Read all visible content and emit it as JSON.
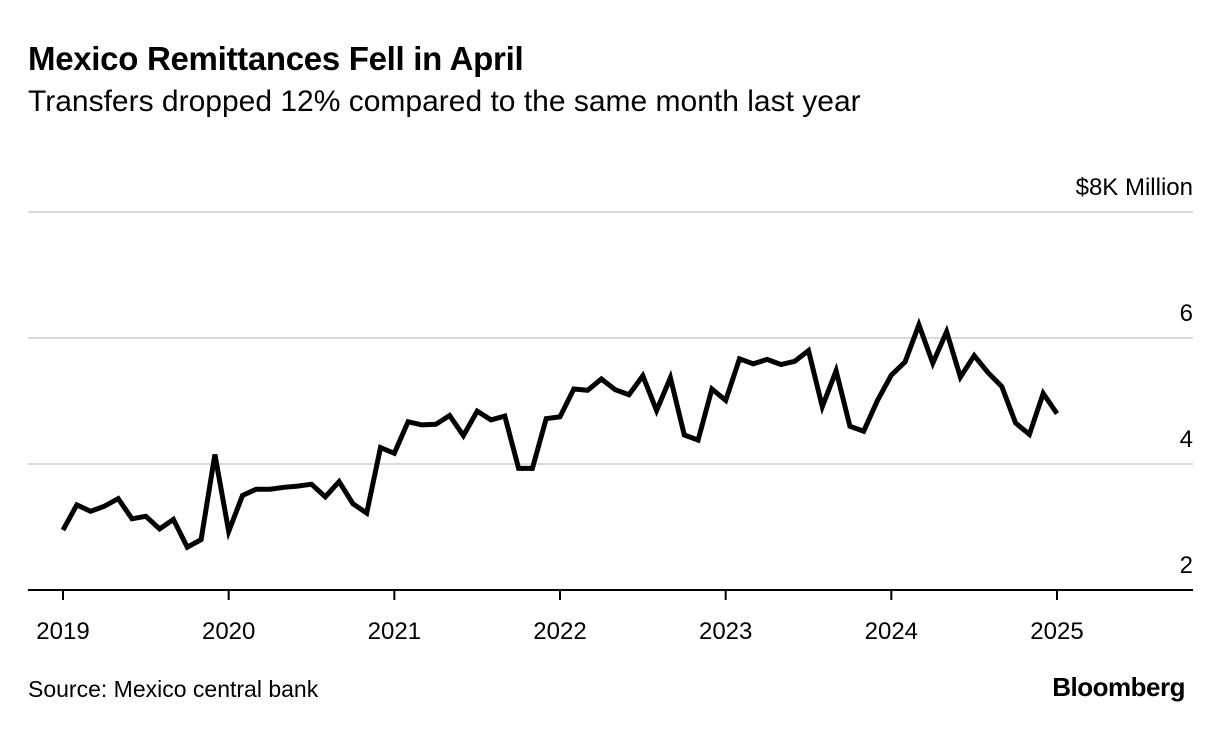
{
  "chart_data": {
    "type": "line",
    "title": "Mexico Remittances Fell in April",
    "subtitle": "Transfers dropped 12% compared to the same month last year",
    "y_unit_label": "$8K Million",
    "ylim": [
      2,
      8
    ],
    "y_ticks": [
      2,
      4,
      6,
      8
    ],
    "y_tick_labels": [
      "2",
      "4",
      "6",
      "$8K Million"
    ],
    "x_range": [
      2018.85,
      2025.75
    ],
    "x_ticks": [
      2019,
      2020,
      2021,
      2022,
      2023,
      2024,
      2025
    ],
    "x_tick_labels": [
      "2019",
      "2020",
      "2021",
      "2022",
      "2023",
      "2024",
      "2025"
    ],
    "grid": true,
    "series": [
      {
        "name": "Remittances",
        "color": "#000000",
        "values": [
          2.95,
          3.35,
          3.25,
          3.33,
          3.45,
          3.13,
          3.17,
          2.97,
          3.12,
          2.68,
          2.8,
          4.15,
          2.93,
          3.5,
          3.6,
          3.6,
          3.63,
          3.65,
          3.68,
          3.48,
          3.72,
          3.37,
          3.22,
          4.26,
          4.17,
          4.67,
          4.62,
          4.63,
          4.77,
          4.45,
          4.84,
          4.7,
          4.76,
          3.93,
          3.93,
          4.72,
          4.75,
          5.19,
          5.17,
          5.35,
          5.18,
          5.1,
          5.4,
          4.85,
          5.37,
          4.46,
          4.38,
          5.19,
          5.01,
          5.67,
          5.59,
          5.66,
          5.58,
          5.63,
          5.8,
          4.91,
          5.48,
          4.6,
          4.52,
          5.01,
          5.41,
          5.62,
          6.21,
          5.6,
          6.1,
          5.38,
          5.72,
          5.45,
          5.23,
          4.65,
          4.47,
          5.12,
          4.8
        ],
        "start": {
          "year": 2019,
          "month": 1
        }
      }
    ]
  },
  "source": "Source: Mexico central bank",
  "brand": "Bloomberg"
}
